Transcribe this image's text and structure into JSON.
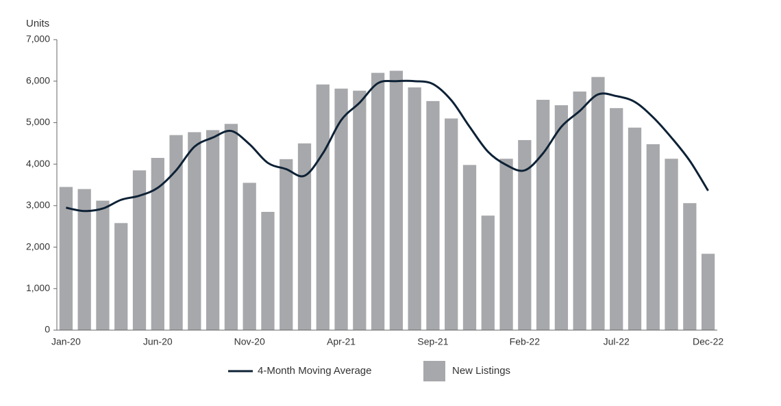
{
  "chart_data": {
    "type": "bar",
    "y_axis_label": "Units",
    "categories": [
      "Jan-20",
      null,
      null,
      null,
      null,
      "Jun-20",
      null,
      null,
      null,
      null,
      "Nov-20",
      null,
      null,
      null,
      null,
      "Apr-21",
      null,
      null,
      null,
      null,
      "Sep-21",
      null,
      null,
      null,
      null,
      "Feb-22",
      null,
      null,
      null,
      null,
      "Jul-22",
      null,
      null,
      null,
      null,
      "Dec-22"
    ],
    "series": [
      {
        "name": "4-Month Moving Average",
        "type": "line",
        "color": "#0d2135",
        "values": [
          2950,
          2870,
          2930,
          3140,
          3240,
          3430,
          3850,
          4420,
          4640,
          4800,
          4480,
          4030,
          3880,
          3720,
          4260,
          5060,
          5480,
          5950,
          6000,
          6000,
          5930,
          5540,
          4900,
          4300,
          3980,
          3850,
          4260,
          4900,
          5280,
          5680,
          5640,
          5500,
          5130,
          4640,
          4080,
          3360
        ]
      },
      {
        "name": "New Listings",
        "type": "bar",
        "color": "#a7a8ab",
        "values": [
          3450,
          3400,
          3120,
          2580,
          3850,
          4150,
          4700,
          4770,
          4820,
          4970,
          3550,
          2850,
          4120,
          4500,
          5920,
          5820,
          5770,
          6200,
          6250,
          5850,
          5520,
          5100,
          3980,
          2760,
          4130,
          4580,
          5550,
          5420,
          5750,
          6100,
          5350,
          4880,
          4480,
          4130,
          3060,
          1840
        ]
      }
    ],
    "ylim": [
      0,
      7000
    ],
    "yticks": [
      0,
      {
        "value": 1000,
        "label": "1,000"
      },
      {
        "value": 2000,
        "label": "2,000"
      },
      {
        "value": 3000,
        "label": "3,000"
      },
      {
        "value": 4000,
        "label": "4,000"
      },
      {
        "value": 5000,
        "label": "5,000"
      },
      {
        "value": 6000,
        "label": "6,000"
      },
      {
        "value": 7000,
        "label": "7,000"
      }
    ],
    "grid": false
  }
}
